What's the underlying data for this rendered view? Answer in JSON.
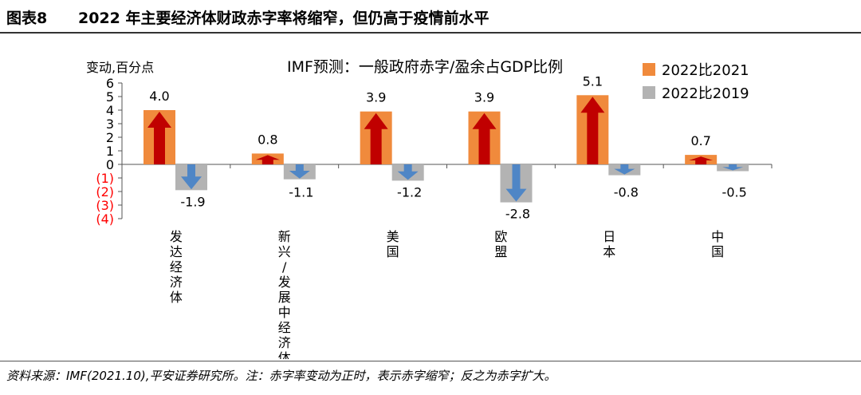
{
  "header": {
    "figure_label": "图表8",
    "title": "2022 年主要经济体财政赤字率将缩窄，但仍高于疫情前水平"
  },
  "footer": {
    "source": "资料来源：IMF(2021.10),平安证券研究所。注：赤字率变动为正时，表示赤字缩窄；反之为赤字扩大。"
  },
  "colors": {
    "series_2021": "#f08a3c",
    "series_2019": "#b3b3b3",
    "arrow_up": "#c00000",
    "arrow_down": "#4f86c6",
    "negative_tick": "#ff0000"
  },
  "chart_data": {
    "type": "bar",
    "title": "IMF预测：一般政府赤字/盈余占GDP比例",
    "ylabel": "变动,百分点",
    "ylim": [
      -4,
      6
    ],
    "yticks": [
      {
        "value": 6,
        "label": "6"
      },
      {
        "value": 5,
        "label": "5"
      },
      {
        "value": 4,
        "label": "4"
      },
      {
        "value": 3,
        "label": "3"
      },
      {
        "value": 2,
        "label": "2"
      },
      {
        "value": 1,
        "label": "1"
      },
      {
        "value": 0,
        "label": "0"
      },
      {
        "value": -1,
        "label": "(1)"
      },
      {
        "value": -2,
        "label": "(2)"
      },
      {
        "value": -3,
        "label": "(3)"
      },
      {
        "value": -4,
        "label": "(4)"
      }
    ],
    "categories": [
      "发达经济体",
      "新兴/发展中经济体",
      "美国",
      "欧盟",
      "日本",
      "中国"
    ],
    "series": [
      {
        "name": "2022比2021",
        "values": [
          4.0,
          0.8,
          3.9,
          3.9,
          5.1,
          0.7
        ],
        "labels": [
          "4.0",
          "0.8",
          "3.9",
          "3.9",
          "5.1",
          "0.7"
        ]
      },
      {
        "name": "2022比2019",
        "values": [
          -1.9,
          -1.1,
          -1.2,
          -2.8,
          -0.8,
          -0.5
        ],
        "labels": [
          "-1.9",
          "-1.1",
          "-1.2",
          "-2.8",
          "-0.8",
          "-0.5"
        ]
      }
    ],
    "legend_position": "top-right",
    "grid": false
  }
}
